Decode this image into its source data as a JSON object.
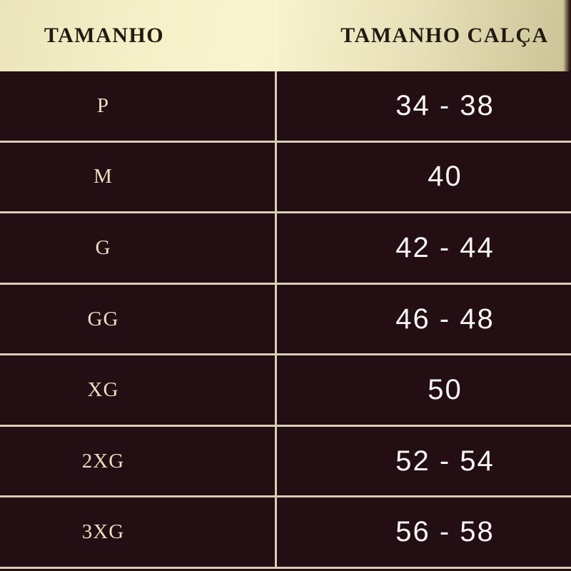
{
  "header": {
    "size_column_label": "TAMANHO",
    "pants_column_label": "TAMANHO CALÇA"
  },
  "rows": [
    {
      "size": "P",
      "pants": "34 - 38"
    },
    {
      "size": "M",
      "pants": "40"
    },
    {
      "size": "G",
      "pants": "42 - 44"
    },
    {
      "size": "GG",
      "pants": "46 - 48"
    },
    {
      "size": "XG",
      "pants": "50"
    },
    {
      "size": "2XG",
      "pants": "52 - 54"
    },
    {
      "size": "3XG",
      "pants": "56 - 58"
    }
  ],
  "chart_data": {
    "type": "table",
    "title": "Size chart (clothing size to pants size)",
    "columns": [
      "TAMANHO",
      "TAMANHO CALÇA"
    ],
    "cells": [
      [
        "P",
        "34 - 38"
      ],
      [
        "M",
        "40"
      ],
      [
        "G",
        "42 - 44"
      ],
      [
        "GG",
        "46 - 48"
      ],
      [
        "XG",
        "50"
      ],
      [
        "2XG",
        "52 - 54"
      ],
      [
        "3XG",
        "56 - 58"
      ]
    ]
  },
  "colors": {
    "background": "#220e13",
    "line": "#d9ceb4",
    "header_gradient_light": "#f9f4ce",
    "header_gradient_dark": "#cdc498",
    "header_text": "#221a12",
    "size_text": "#eadfc2",
    "value_text": "#f8f6f3"
  }
}
